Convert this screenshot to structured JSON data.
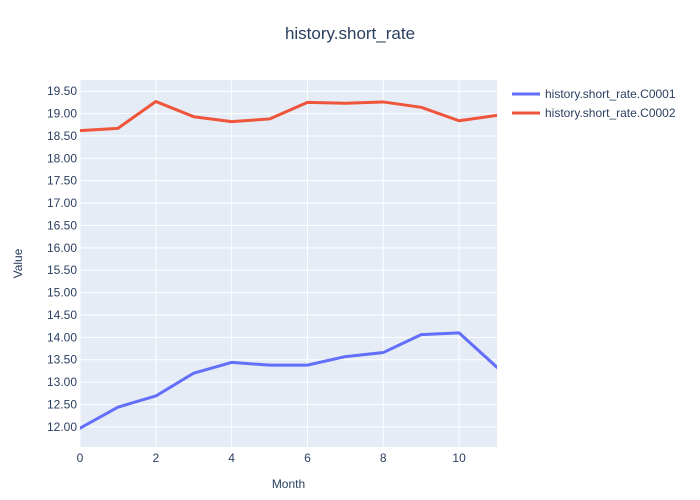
{
  "chart_data": {
    "type": "line",
    "title": "history.short_rate",
    "xlabel": "Month",
    "ylabel": "Value",
    "x": [
      0,
      1,
      2,
      3,
      4,
      5,
      6,
      7,
      8,
      9,
      10,
      11
    ],
    "xlim": [
      0,
      11
    ],
    "ylim": [
      11.55,
      19.75
    ],
    "x_ticks": [
      0,
      2,
      4,
      6,
      8,
      10
    ],
    "y_ticks": [
      12.0,
      12.5,
      13.0,
      13.5,
      14.0,
      14.5,
      15.0,
      15.5,
      16.0,
      16.5,
      17.0,
      17.5,
      18.0,
      18.5,
      19.0,
      19.5
    ],
    "x_tick_labels": [
      "0",
      "2",
      "4",
      "6",
      "8",
      "10"
    ],
    "y_tick_labels": [
      "12.00",
      "12.50",
      "13.00",
      "13.50",
      "14.00",
      "14.50",
      "15.00",
      "15.50",
      "16.00",
      "16.50",
      "17.00",
      "17.50",
      "18.00",
      "18.50",
      "19.00",
      "19.50"
    ],
    "grid": true,
    "legend_position": "top-right",
    "plot_background": "#e5ecf6",
    "series": [
      {
        "name": "history.short_rate.C0001",
        "color": "#636efa",
        "values": [
          11.97,
          12.44,
          12.69,
          13.2,
          13.44,
          13.38,
          13.38,
          13.57,
          13.66,
          14.06,
          14.1,
          13.33
        ]
      },
      {
        "name": "history.short_rate.C0002",
        "color": "#ef553b",
        "values": [
          18.62,
          18.67,
          19.27,
          18.93,
          18.82,
          18.88,
          19.25,
          19.23,
          19.26,
          19.14,
          18.84,
          18.96
        ]
      }
    ]
  }
}
